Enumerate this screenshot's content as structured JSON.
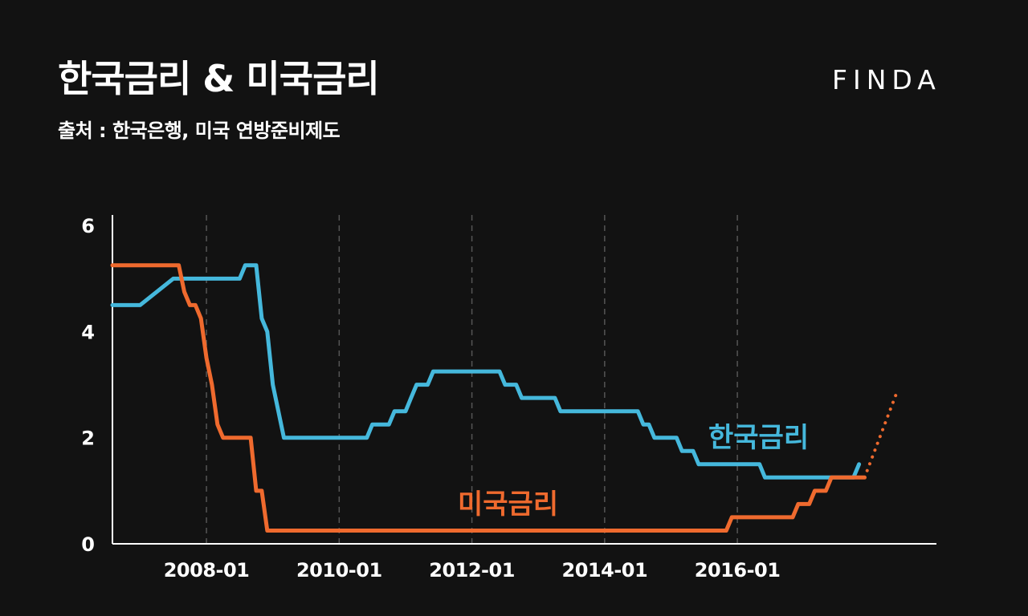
{
  "header": {
    "title": "한국금리 & 미국금리",
    "subtitle": "출처 : 한국은행, 미국 연방준비제도",
    "brand": "FINDA"
  },
  "colors": {
    "background": "#121212",
    "korea": "#45b8dc",
    "us": "#ef6a2e",
    "axis": "#ffffff",
    "grid": "#555555"
  },
  "chart_data": {
    "type": "line",
    "grid": "vertical-dashed",
    "ylim": [
      0,
      6.2
    ],
    "xlim": [
      "2006-08",
      "2019-01"
    ],
    "yticks": [
      {
        "value": 0,
        "label": "0"
      },
      {
        "value": 2,
        "label": "2"
      },
      {
        "value": 4,
        "label": "4"
      },
      {
        "value": 6,
        "label": "6"
      }
    ],
    "xticks": [
      {
        "value": "2008-01",
        "label": "2008-01"
      },
      {
        "value": "2010-01",
        "label": "2010-01"
      },
      {
        "value": "2012-01",
        "label": "2012-01"
      },
      {
        "value": "2014-01",
        "label": "2014-01"
      },
      {
        "value": "2016-01",
        "label": "2016-01"
      }
    ],
    "series": [
      {
        "name": "한국금리",
        "color": "#45b8dc",
        "label_position": "upper-right",
        "points": [
          [
            "2006-08",
            4.5
          ],
          [
            "2007-01",
            4.5
          ],
          [
            "2007-07",
            5.0
          ],
          [
            "2008-07",
            5.0
          ],
          [
            "2008-08",
            5.25
          ],
          [
            "2008-10",
            5.25
          ],
          [
            "2008-11",
            4.25
          ],
          [
            "2008-12",
            4.0
          ],
          [
            "2009-01",
            3.0
          ],
          [
            "2009-03",
            2.0
          ],
          [
            "2010-06",
            2.0
          ],
          [
            "2010-07",
            2.25
          ],
          [
            "2010-10",
            2.25
          ],
          [
            "2010-11",
            2.5
          ],
          [
            "2011-01",
            2.5
          ],
          [
            "2011-02",
            2.75
          ],
          [
            "2011-03",
            3.0
          ],
          [
            "2011-05",
            3.0
          ],
          [
            "2011-06",
            3.25
          ],
          [
            "2012-06",
            3.25
          ],
          [
            "2012-07",
            3.0
          ],
          [
            "2012-09",
            3.0
          ],
          [
            "2012-10",
            2.75
          ],
          [
            "2013-04",
            2.75
          ],
          [
            "2013-05",
            2.5
          ],
          [
            "2014-07",
            2.5
          ],
          [
            "2014-08",
            2.25
          ],
          [
            "2014-09",
            2.25
          ],
          [
            "2014-10",
            2.0
          ],
          [
            "2015-02",
            2.0
          ],
          [
            "2015-03",
            1.75
          ],
          [
            "2015-05",
            1.75
          ],
          [
            "2015-06",
            1.5
          ],
          [
            "2016-05",
            1.5
          ],
          [
            "2016-06",
            1.25
          ],
          [
            "2017-10",
            1.25
          ],
          [
            "2017-11",
            1.5
          ]
        ]
      },
      {
        "name": "미국금리",
        "color": "#ef6a2e",
        "label_position": "lower-middle",
        "points": [
          [
            "2006-08",
            5.25
          ],
          [
            "2007-08",
            5.25
          ],
          [
            "2007-09",
            4.75
          ],
          [
            "2007-10",
            4.5
          ],
          [
            "2007-11",
            4.5
          ],
          [
            "2007-12",
            4.25
          ],
          [
            "2008-01",
            3.5
          ],
          [
            "2008-02",
            3.0
          ],
          [
            "2008-03",
            2.25
          ],
          [
            "2008-04",
            2.0
          ],
          [
            "2008-09",
            2.0
          ],
          [
            "2008-10",
            1.0
          ],
          [
            "2008-11",
            1.0
          ],
          [
            "2008-12",
            0.25
          ],
          [
            "2015-11",
            0.25
          ],
          [
            "2015-12",
            0.5
          ],
          [
            "2016-11",
            0.5
          ],
          [
            "2016-12",
            0.75
          ],
          [
            "2017-02",
            0.75
          ],
          [
            "2017-03",
            1.0
          ],
          [
            "2017-05",
            1.0
          ],
          [
            "2017-06",
            1.25
          ],
          [
            "2017-12",
            1.25
          ]
        ],
        "projection": [
          [
            "2017-12",
            1.25
          ],
          [
            "2018-06",
            2.9
          ]
        ]
      }
    ]
  }
}
